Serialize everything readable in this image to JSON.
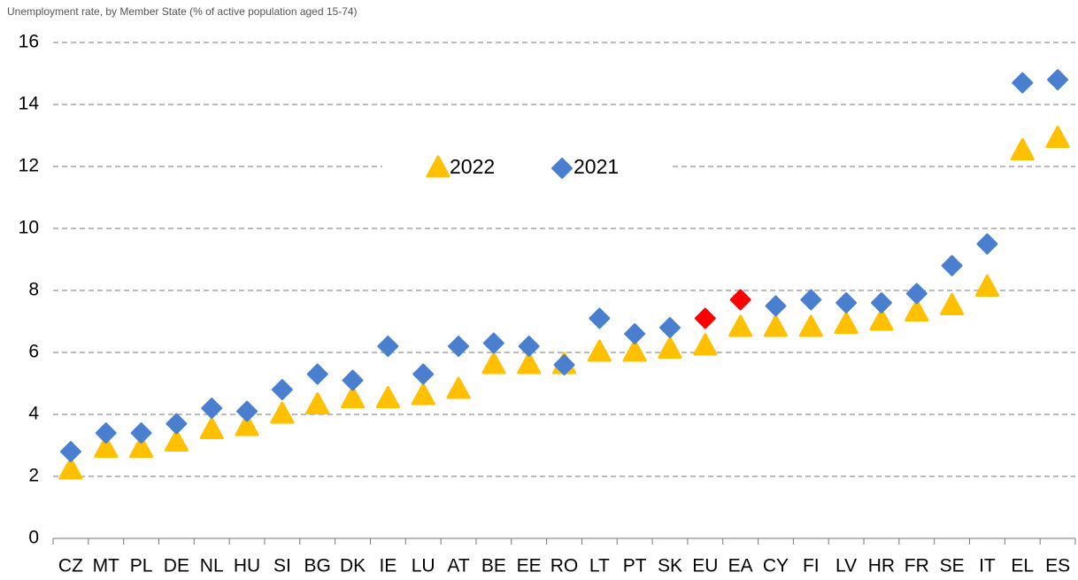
{
  "chart_data": {
    "type": "scatter",
    "subtitle": "Unemployment rate, by Member State (% of active population aged 15-74)",
    "categories": [
      "CZ",
      "MT",
      "PL",
      "DE",
      "NL",
      "HU",
      "SI",
      "BG",
      "DK",
      "IE",
      "LU",
      "AT",
      "BE",
      "EE",
      "RO",
      "LT",
      "PT",
      "SK",
      "EU",
      "EA",
      "CY",
      "FI",
      "LV",
      "HR",
      "FR",
      "SE",
      "IT",
      "EL",
      "ES"
    ],
    "series": [
      {
        "name": "2022",
        "color": "#ffc000",
        "marker": "triangle",
        "values": [
          2.2,
          2.9,
          2.9,
          3.1,
          3.5,
          3.6,
          4.0,
          4.3,
          4.5,
          4.5,
          4.6,
          4.8,
          5.6,
          5.6,
          5.6,
          6.0,
          6.0,
          6.1,
          6.2,
          6.8,
          6.8,
          6.8,
          6.9,
          7.0,
          7.3,
          7.5,
          8.1,
          12.5,
          12.9
        ]
      },
      {
        "name": "2021",
        "color": "#4a7fd0",
        "marker": "diamond",
        "values": [
          2.8,
          3.4,
          3.4,
          3.7,
          4.2,
          4.1,
          4.8,
          5.3,
          5.1,
          6.2,
          5.3,
          6.2,
          6.3,
          6.2,
          5.6,
          7.1,
          6.6,
          6.8,
          7.1,
          7.7,
          7.5,
          7.7,
          7.6,
          7.6,
          7.9,
          8.8,
          9.5,
          14.7,
          14.8
        ],
        "colors": [
          "#4a7fd0",
          "#4a7fd0",
          "#4a7fd0",
          "#4a7fd0",
          "#4a7fd0",
          "#4a7fd0",
          "#4a7fd0",
          "#4a7fd0",
          "#4a7fd0",
          "#4a7fd0",
          "#4a7fd0",
          "#4a7fd0",
          "#4a7fd0",
          "#4a7fd0",
          "#4a7fd0",
          "#4a7fd0",
          "#4a7fd0",
          "#4a7fd0",
          "#ff0000",
          "#ff0000",
          "#4a7fd0",
          "#4a7fd0",
          "#4a7fd0",
          "#4a7fd0",
          "#4a7fd0",
          "#4a7fd0",
          "#4a7fd0",
          "#4a7fd0",
          "#4a7fd0"
        ]
      }
    ],
    "ylim": [
      0,
      16
    ],
    "yticks": [
      0,
      2,
      4,
      6,
      8,
      10,
      12,
      14,
      16
    ],
    "grid": true,
    "legend": "top"
  }
}
